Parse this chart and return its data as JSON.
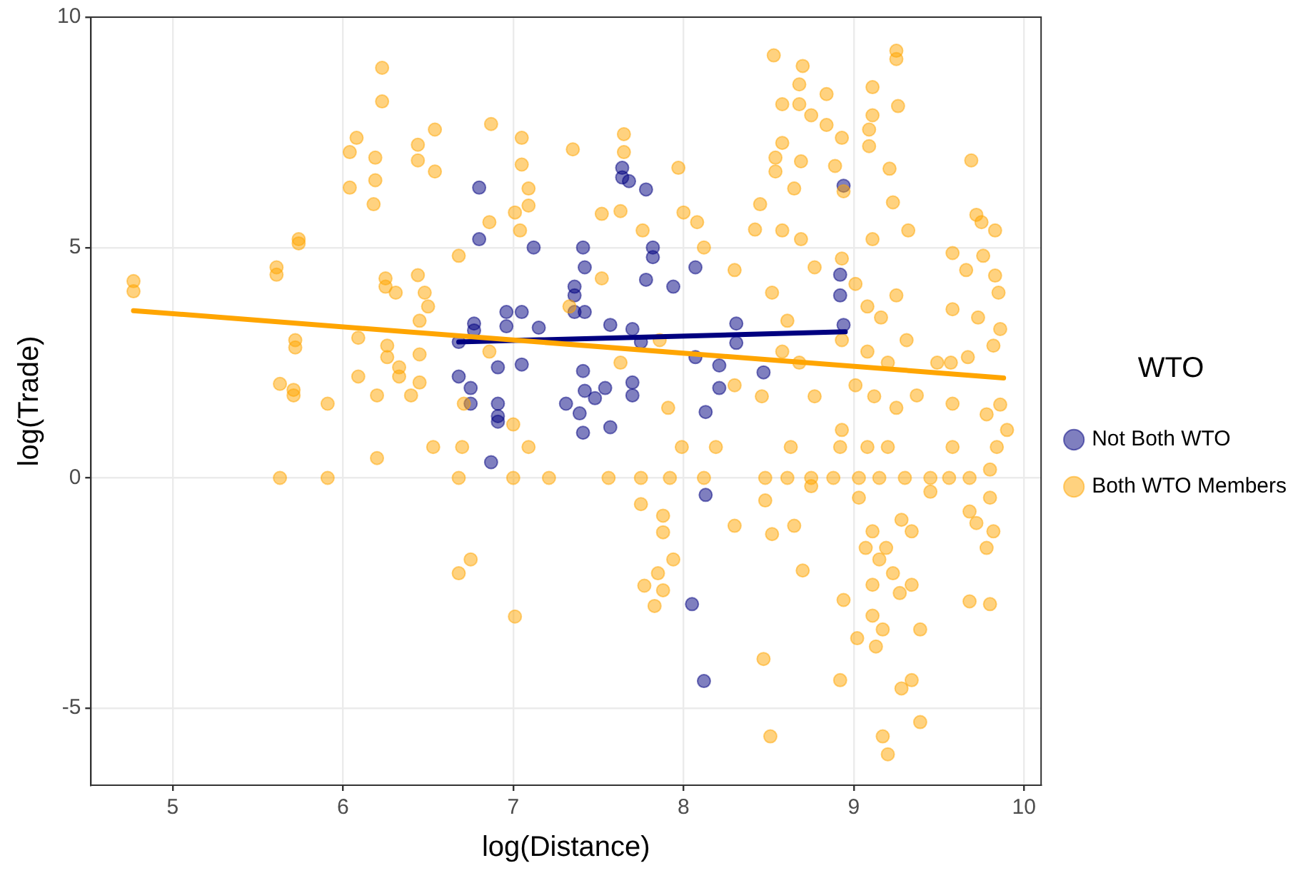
{
  "chart_data": {
    "type": "scatter",
    "xlabel": "log(Distance)",
    "ylabel": "log(Trade)",
    "legend_title": "WTO",
    "legend": "right",
    "grid": true,
    "marker": "circle",
    "xlim": [
      4.52,
      10.1
    ],
    "ylim": [
      -6.67,
      10
    ],
    "xticks": [
      5,
      6,
      7,
      8,
      9,
      10
    ],
    "yticks": [
      -5,
      0,
      5,
      10
    ],
    "series": [
      {
        "name": "Both WTO Members",
        "color": "#ffa500",
        "type": "scatter",
        "x": [
          4.77,
          4.77,
          5.61,
          5.61,
          5.74,
          5.74,
          5.72,
          5.72,
          5.63,
          5.71,
          5.71,
          5.63,
          5.91,
          5.91,
          6.04,
          6.08,
          6.04,
          6.19,
          6.19,
          6.18,
          6.23,
          6.23,
          6.25,
          6.25,
          6.31,
          6.09,
          6.09,
          6.2,
          6.2,
          6.26,
          6.26,
          6.33,
          6.33,
          6.4,
          6.44,
          6.44,
          6.44,
          6.54,
          6.54,
          6.48,
          6.5,
          6.45,
          6.45,
          6.45,
          6.53,
          6.87,
          7.05,
          7.05,
          7.09,
          7.09,
          7.01,
          6.86,
          7.04,
          6.68,
          6.68,
          6.75,
          7.01,
          6.68,
          7.0,
          7.21,
          6.7,
          6.71,
          7.0,
          7.09,
          6.86,
          7.35,
          7.52,
          7.63,
          7.65,
          7.65,
          7.76,
          7.97,
          8.0,
          8.08,
          8.12,
          7.33,
          7.52,
          7.63,
          7.86,
          7.91,
          7.99,
          7.75,
          7.56,
          7.92,
          8.12,
          7.75,
          7.88,
          7.88,
          7.94,
          7.85,
          7.88,
          7.77,
          7.83,
          8.3,
          8.3,
          8.19,
          8.3,
          8.47,
          8.51,
          8.53,
          8.58,
          8.7,
          8.68,
          8.68,
          8.84,
          8.75,
          8.84,
          8.58,
          8.54,
          8.54,
          8.69,
          8.65,
          8.45,
          8.42,
          8.58,
          8.69,
          8.77,
          8.52,
          8.61,
          8.58,
          8.68,
          8.77,
          8.46,
          8.63,
          8.48,
          8.61,
          8.75,
          8.48,
          8.52,
          8.65,
          8.7,
          8.75,
          8.93,
          8.89,
          8.94,
          9.11,
          9.25,
          9.25,
          9.26,
          9.11,
          9.09,
          9.09,
          9.21,
          9.23,
          9.32,
          9.11,
          8.93,
          9.01,
          9.08,
          9.16,
          9.25,
          8.93,
          9.08,
          9.2,
          9.31,
          9.01,
          9.12,
          9.25,
          8.93,
          9.08,
          9.2,
          8.92,
          8.88,
          9.03,
          9.15,
          9.3,
          9.45,
          9.03,
          9.11,
          9.07,
          9.15,
          9.19,
          9.11,
          9.23,
          9.27,
          9.11,
          9.02,
          9.13,
          9.17,
          9.34,
          9.28,
          8.92,
          9.34,
          9.39,
          9.17,
          9.2,
          9.39,
          9.28,
          9.34,
          8.94,
          9.69,
          9.72,
          9.75,
          9.83,
          9.58,
          9.66,
          9.76,
          9.83,
          9.85,
          9.58,
          9.73,
          9.86,
          9.82,
          9.57,
          9.67,
          9.37,
          9.58,
          9.86,
          9.78,
          9.9,
          9.58,
          9.84,
          9.56,
          9.68,
          9.8,
          9.8,
          9.68,
          9.72,
          9.82,
          9.78,
          9.68,
          9.8,
          9.45,
          9.49
        ],
        "values": [
          4.27,
          4.05,
          4.57,
          4.41,
          5.18,
          5.09,
          2.99,
          2.83,
          2.04,
          1.91,
          1.79,
          0,
          0,
          1.61,
          7.07,
          7.38,
          6.3,
          6.95,
          6.46,
          5.94,
          8.9,
          8.17,
          4.33,
          4.15,
          4.02,
          3.04,
          2.2,
          1.79,
          0.43,
          2.87,
          2.62,
          2.4,
          2.2,
          1.79,
          4.4,
          7.23,
          6.89,
          7.56,
          6.65,
          4.02,
          3.72,
          3.41,
          2.68,
          2.07,
          0.67,
          7.68,
          7.38,
          6.8,
          6.28,
          5.91,
          5.76,
          5.55,
          5.37,
          4.82,
          -2.07,
          -1.77,
          -3.01,
          0,
          0,
          0,
          0.67,
          1.61,
          1.16,
          0.67,
          2.74,
          7.13,
          5.73,
          5.79,
          7.46,
          7.07,
          5.37,
          6.73,
          5.76,
          5.55,
          5.0,
          3.72,
          4.33,
          2.5,
          2.99,
          1.52,
          0.67,
          0,
          0,
          0,
          0,
          -0.57,
          -0.82,
          -1.18,
          -1.77,
          -2.07,
          -2.44,
          -2.34,
          -2.78,
          4.51,
          -1.04,
          0.67,
          2.01,
          -3.93,
          -5.61,
          9.17,
          8.11,
          8.94,
          8.54,
          8.11,
          8.33,
          7.87,
          7.66,
          7.27,
          6.95,
          6.65,
          6.87,
          6.28,
          5.94,
          5.39,
          5.37,
          5.18,
          4.57,
          4.02,
          3.41,
          2.74,
          2.5,
          1.77,
          1.77,
          0.67,
          0,
          0,
          0,
          -0.49,
          -1.22,
          -1.04,
          -2.01,
          -0.18,
          7.38,
          6.77,
          6.22,
          8.48,
          9.27,
          9.09,
          8.07,
          7.87,
          7.56,
          7.2,
          6.71,
          5.98,
          5.37,
          5.18,
          4.76,
          4.21,
          3.72,
          3.48,
          3.96,
          2.99,
          2.74,
          2.5,
          2.99,
          2.01,
          1.77,
          1.52,
          1.04,
          0.67,
          0.67,
          0.67,
          0,
          0,
          0,
          0,
          0,
          -0.43,
          -1.16,
          -1.52,
          -1.77,
          -1.52,
          -2.32,
          -2.07,
          -2.5,
          -2.99,
          -3.48,
          -3.66,
          -3.29,
          -2.32,
          -4.57,
          -4.39,
          -4.39,
          -5.3,
          -5.61,
          -6.0,
          -3.29,
          -0.91,
          -1.16,
          -2.65,
          6.89,
          5.71,
          5.55,
          5.37,
          4.88,
          4.51,
          4.82,
          4.39,
          4.02,
          3.66,
          3.48,
          3.23,
          2.87,
          2.5,
          2.62,
          1.79,
          1.61,
          1.59,
          1.38,
          1.04,
          0.67,
          0.67,
          0,
          0,
          0.18,
          -0.43,
          -0.73,
          -0.98,
          -1.16,
          -1.52,
          -2.68,
          -2.74,
          -0.3,
          2.5
        ]
      },
      {
        "name": "Not Both WTO",
        "color": "#000080",
        "type": "scatter",
        "x": [
          6.8,
          6.8,
          7.12,
          7.64,
          7.64,
          7.68,
          7.78,
          7.41,
          7.42,
          7.36,
          7.36,
          7.36,
          7.42,
          7.78,
          7.82,
          7.82,
          7.94,
          8.07,
          8.92,
          8.92,
          8.94,
          8.94,
          6.96,
          7.05,
          6.96,
          7.15,
          6.77,
          6.77,
          6.68,
          6.68,
          6.75,
          6.75,
          6.91,
          6.91,
          6.91,
          6.91,
          7.05,
          6.87,
          7.31,
          7.39,
          7.41,
          7.42,
          7.41,
          7.48,
          7.54,
          7.57,
          7.57,
          7.7,
          7.7,
          7.7,
          7.75,
          8.07,
          8.13,
          8.21,
          8.21,
          8.31,
          8.31,
          8.47,
          8.13,
          8.05,
          8.12
        ],
        "values": [
          6.3,
          5.18,
          5.0,
          6.73,
          6.52,
          6.44,
          6.26,
          5.0,
          4.57,
          4.15,
          3.96,
          3.6,
          3.6,
          4.3,
          5.0,
          4.79,
          4.15,
          4.57,
          4.41,
          3.96,
          6.34,
          3.32,
          3.6,
          3.6,
          3.29,
          3.26,
          3.35,
          3.2,
          2.95,
          2.2,
          1.95,
          1.61,
          2.4,
          1.61,
          1.34,
          1.22,
          2.46,
          0.34,
          1.61,
          1.4,
          2.32,
          1.89,
          0.98,
          1.73,
          1.95,
          1.1,
          3.32,
          3.23,
          2.07,
          1.79,
          2.95,
          2.62,
          1.43,
          2.44,
          1.95,
          3.35,
          2.93,
          2.29,
          -0.37,
          -2.74,
          -4.41
        ]
      },
      {
        "color": "#ffa500",
        "type": "line",
        "marker": "none",
        "x": [
          4.77,
          9.88
        ],
        "values": [
          3.63,
          2.17
        ]
      },
      {
        "color": "#000080",
        "type": "line",
        "marker": "none",
        "x": [
          6.68,
          8.95
        ],
        "values": [
          2.95,
          3.17
        ]
      }
    ]
  }
}
